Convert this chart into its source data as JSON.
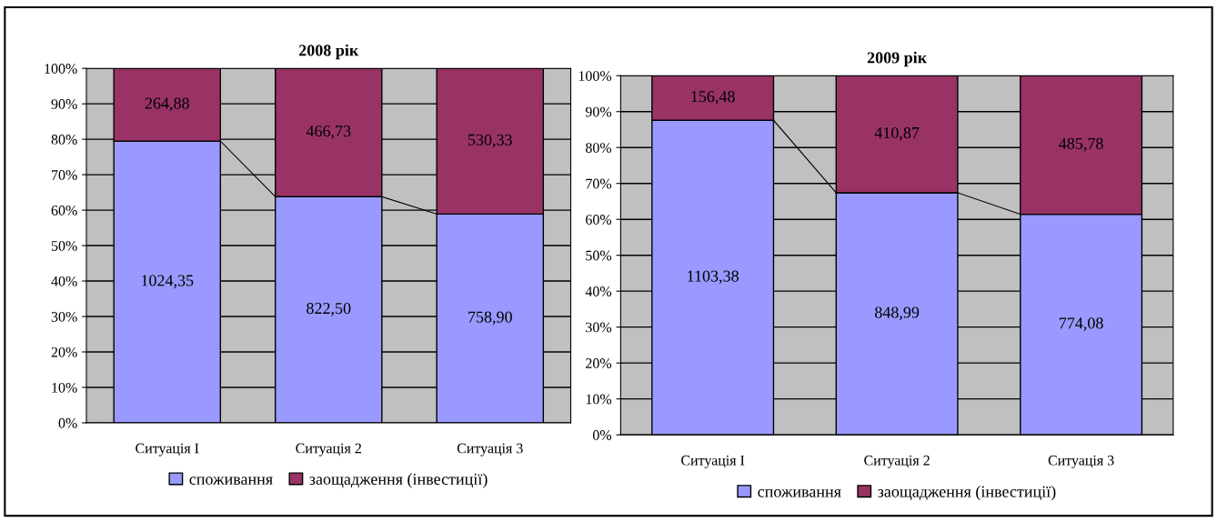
{
  "chart_data": [
    {
      "type": "bar",
      "stacked": true,
      "title": "2008 рік",
      "categories": [
        "Ситуація I",
        "Ситуація 2",
        "Ситуація 3"
      ],
      "series": [
        {
          "name": "споживання",
          "color": "#9999ff",
          "values": [
            79.5,
            63.8,
            58.9
          ]
        },
        {
          "name": "заощадження (інвестиції)",
          "color": "#993366",
          "values": [
            20.5,
            36.2,
            41.1
          ]
        }
      ],
      "annotations": [
        "1024,35",
        "822,50",
        "758,90",
        "264,88",
        "466,73",
        "530,33"
      ],
      "ylim": [
        0,
        100
      ],
      "yticks": [
        {
          "value": 0,
          "label": "0%"
        },
        {
          "value": 10,
          "label": "10%"
        },
        {
          "value": 20,
          "label": "20%"
        },
        {
          "value": 30,
          "label": "30%"
        },
        {
          "value": 40,
          "label": "40%"
        },
        {
          "value": 50,
          "label": "50%"
        },
        {
          "value": 60,
          "label": "60%"
        },
        {
          "value": 70,
          "label": "70%"
        },
        {
          "value": 80,
          "label": "80%"
        },
        {
          "value": 90,
          "label": "90%"
        },
        {
          "value": 100,
          "label": "100%"
        }
      ],
      "grid": "y",
      "legend": "bottom"
    },
    {
      "type": "bar",
      "stacked": true,
      "title": "2009 рік",
      "categories": [
        "Ситуація I",
        "Ситуація 2",
        "Ситуація 3"
      ],
      "series": [
        {
          "name": "споживання",
          "color": "#9999ff",
          "values": [
            87.6,
            67.4,
            61.4
          ]
        },
        {
          "name": "заощадження (інвестиції)",
          "color": "#993366",
          "values": [
            12.4,
            32.6,
            38.6
          ]
        }
      ],
      "annotations": [
        "1103,38",
        "848,99",
        "774,08",
        "156,48",
        "410,87",
        "485,78"
      ],
      "ylim": [
        0,
        100
      ],
      "yticks": [
        {
          "value": 0,
          "label": "0%"
        },
        {
          "value": 10,
          "label": "10%"
        },
        {
          "value": 20,
          "label": "20%"
        },
        {
          "value": 30,
          "label": "30%"
        },
        {
          "value": 40,
          "label": "40%"
        },
        {
          "value": 50,
          "label": "50%"
        },
        {
          "value": 60,
          "label": "60%"
        },
        {
          "value": 70,
          "label": "70%"
        },
        {
          "value": 80,
          "label": "80%"
        },
        {
          "value": 90,
          "label": "90%"
        },
        {
          "value": 100,
          "label": "100%"
        }
      ],
      "grid": "y",
      "legend": "bottom"
    }
  ]
}
